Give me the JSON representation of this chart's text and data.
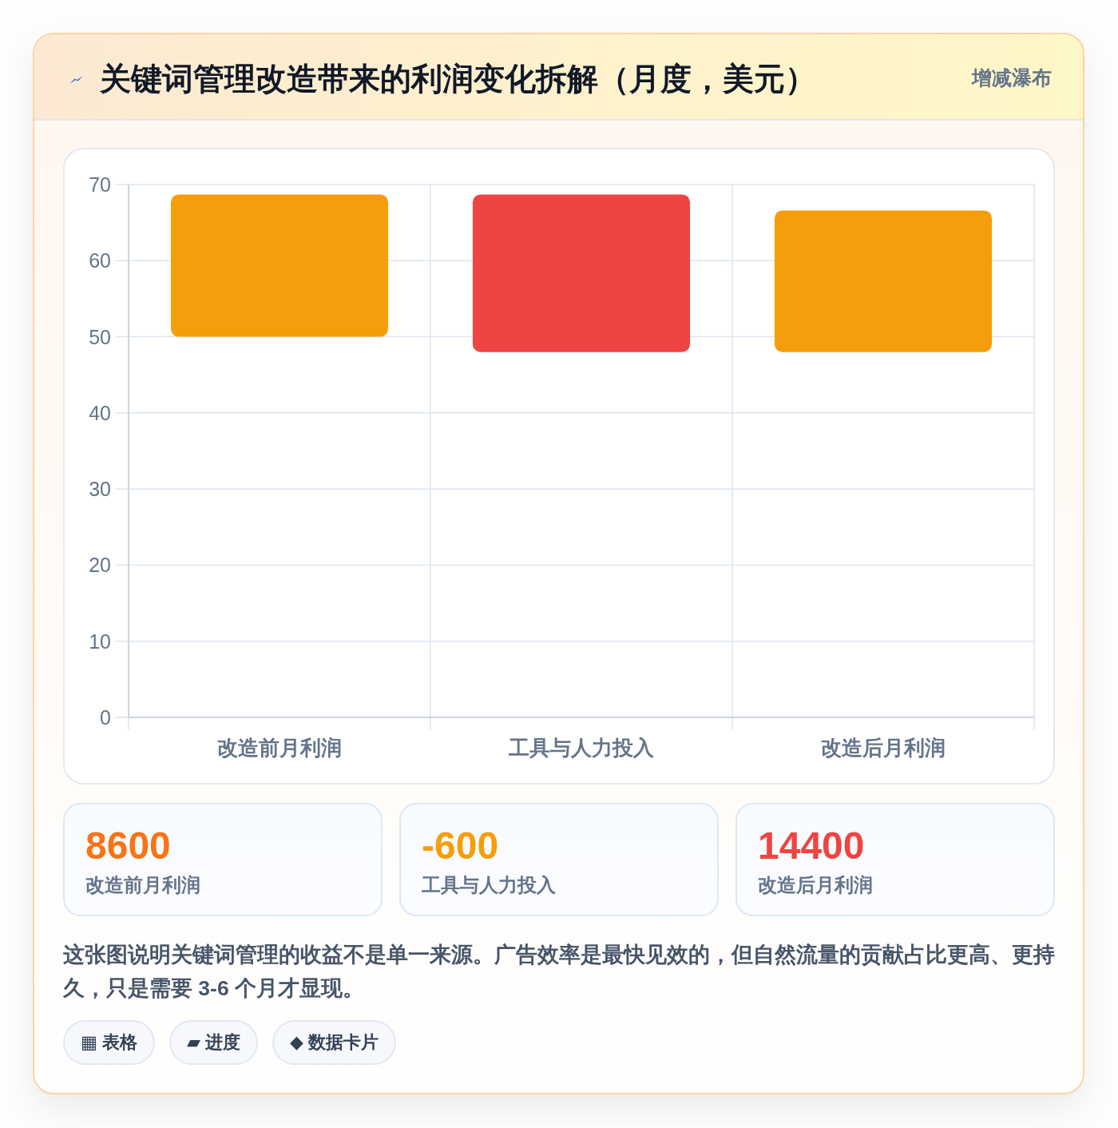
{
  "chart_data": [
    {
      "type": "bar",
      "title": "关键词管理改造带来的利润变化拆解（月度，美元）",
      "subtitle": "增减瀑布",
      "categories": [
        "改造前月利润",
        "工具与人力投入",
        "改造后月利润"
      ],
      "base": [
        50,
        48,
        48
      ],
      "values": [
        18.7,
        20.7,
        18.6
      ],
      "colors": [
        "#f59e0b",
        "#ef4444",
        "#f59e0b"
      ],
      "ylim": [
        0,
        70
      ],
      "yticks": [
        0,
        10,
        20,
        30,
        40,
        50,
        60,
        70
      ],
      "grid": true
    },
    {
      "type": "other",
      "colors": [
        "#f97316",
        "#f59e0b",
        "#ef4444"
      ],
      "annotations": [
        "8600",
        "改造前月利润",
        "-600",
        "工具与人力投入",
        "14400",
        "改造后月利润",
        "这张图说明关键词管理的收益不是单一来源。广告效率是最快见效的，但自然流量的贡献占比更高、更持久，只是需要 3-6 个月才显现。",
        "▦ 表格",
        "▰ 进度",
        "◆ 数据卡片"
      ]
    }
  ]
}
